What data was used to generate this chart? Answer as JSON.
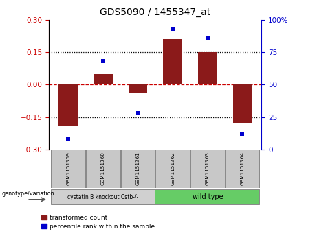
{
  "title": "GDS5090 / 1455347_at",
  "samples": [
    "GSM1151359",
    "GSM1151360",
    "GSM1151361",
    "GSM1151362",
    "GSM1151363",
    "GSM1151364"
  ],
  "transformed_counts": [
    -0.19,
    0.05,
    -0.04,
    0.21,
    0.15,
    -0.18
  ],
  "percentile_ranks": [
    8,
    68,
    28,
    93,
    86,
    12
  ],
  "bar_color": "#8B1A1A",
  "dot_color": "#0000CD",
  "ylim_left": [
    -0.3,
    0.3
  ],
  "ylim_right": [
    0,
    100
  ],
  "yticks_left": [
    -0.3,
    -0.15,
    0,
    0.15,
    0.3
  ],
  "yticks_right": [
    0,
    25,
    50,
    75,
    100
  ],
  "hlines": [
    -0.15,
    0.15
  ],
  "hline_zero_color": "#CC0000",
  "hline_other_color": "black",
  "plot_bg_color": "white",
  "legend_red_label": "transformed count",
  "legend_blue_label": "percentile rank within the sample",
  "genotype_label": "genotype/variation",
  "group1_label": "cystatin B knockout Cstb-/-",
  "group2_label": "wild type",
  "group1_color": "#d0d0d0",
  "group2_color": "#66CC66",
  "sample_box_color": "#c8c8c8",
  "n_group1": 3,
  "n_group2": 3
}
